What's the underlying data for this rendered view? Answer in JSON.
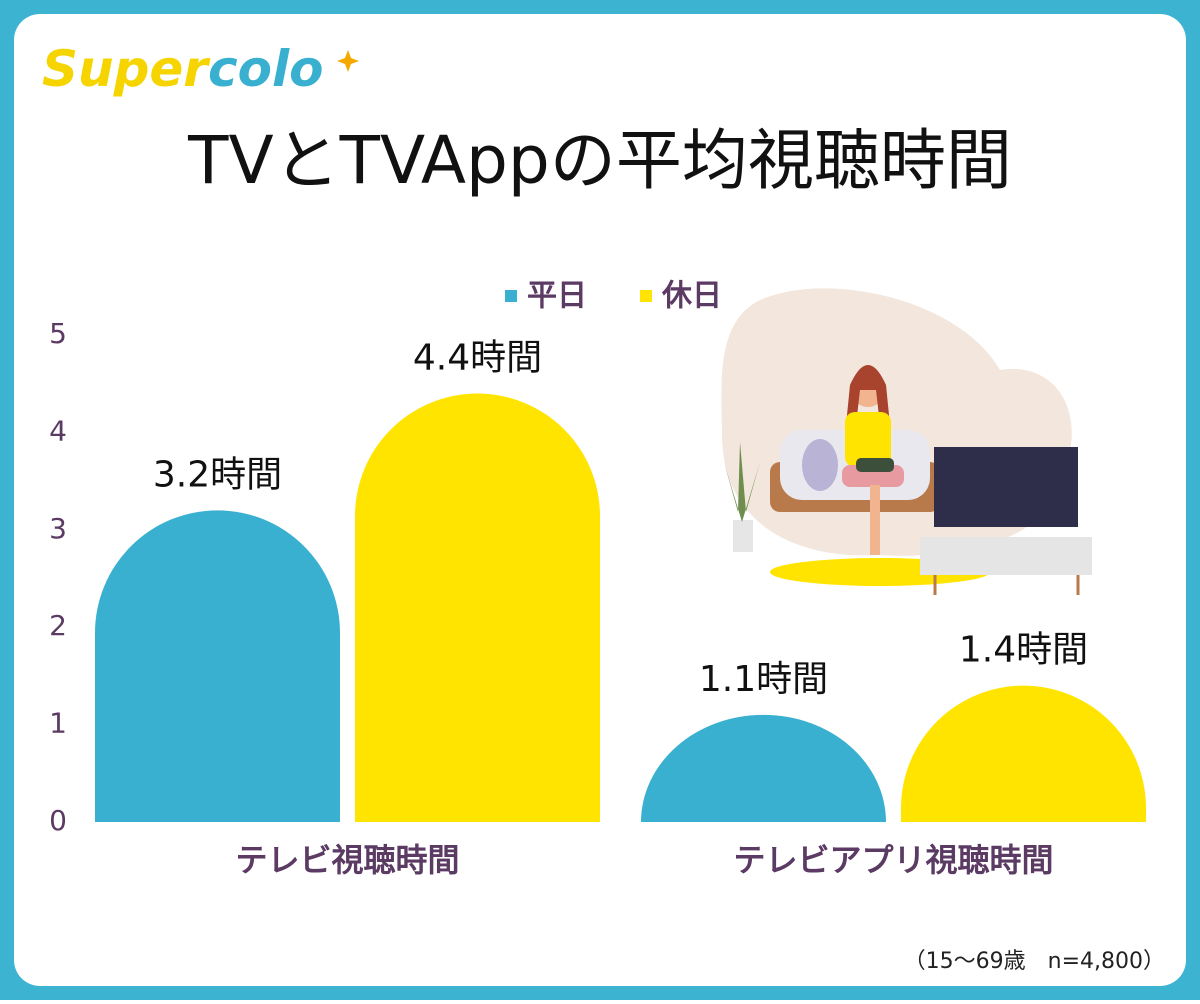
{
  "brand": [
    "Super",
    "colo"
  ],
  "chart_data": {
    "type": "bar",
    "title": "TVとTVAppの平均視聴時間",
    "categories": [
      "テレビ視聴時間",
      "テレビアプリ視聴時間"
    ],
    "series": [
      {
        "name": "平日",
        "color": "#3ab0d0",
        "values": [
          3.2,
          1.1
        ],
        "value_labels": [
          "3.2時間",
          "1.1時間"
        ]
      },
      {
        "name": "休日",
        "color": "#ffe400",
        "values": [
          4.4,
          1.4
        ],
        "value_labels": [
          "4.4時間",
          "1.4時間"
        ]
      }
    ],
    "ylim": [
      0,
      5
    ],
    "yticks": [
      0,
      1,
      2,
      3,
      4,
      5
    ],
    "grid": false,
    "note": "（15〜69歳　n=4,800）"
  }
}
